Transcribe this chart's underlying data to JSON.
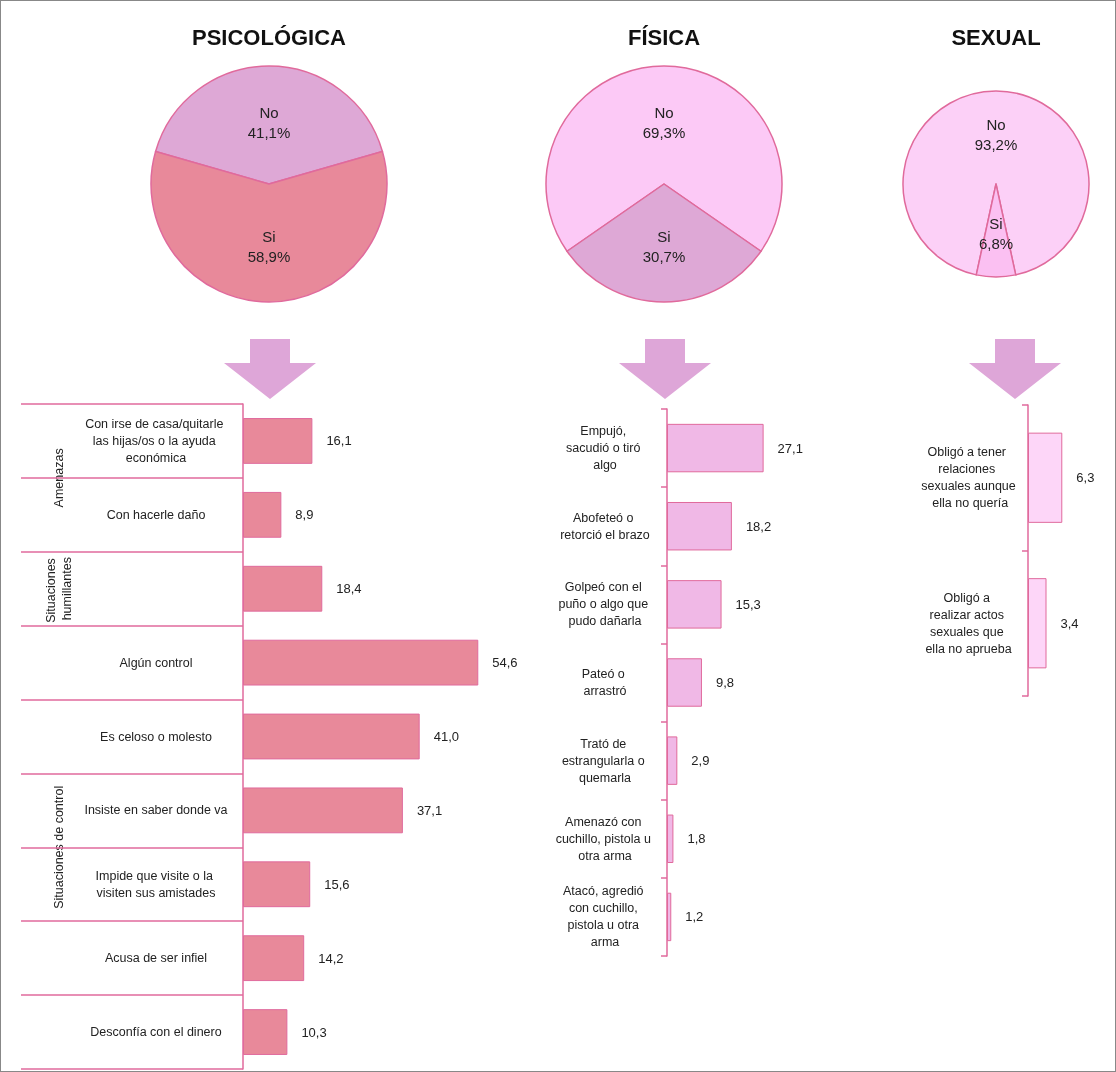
{
  "chart_data": [
    {
      "type": "pie",
      "title": "PSICOLÓGICA",
      "categories": [
        "No",
        "Si"
      ],
      "values": [
        41.1,
        58.9
      ],
      "colors": [
        "#dea8d6",
        "#e8899a"
      ],
      "value_labels": [
        "41,1%",
        "58,9%"
      ]
    },
    {
      "type": "pie",
      "title": "FÍSICA",
      "categories": [
        "No",
        "Si"
      ],
      "values": [
        69.3,
        30.7
      ],
      "colors": [
        "#fcc9f6",
        "#dea8d6"
      ],
      "value_labels": [
        "69,3%",
        "30,7%"
      ]
    },
    {
      "type": "pie",
      "title": "SEXUAL",
      "categories": [
        "No",
        "Si"
      ],
      "values": [
        93.2,
        6.8
      ],
      "colors": [
        "#fcd0f7",
        "#fbc0f2"
      ],
      "value_labels": [
        "93,2%",
        "6,8%"
      ]
    },
    {
      "type": "bar",
      "orientation": "horizontal",
      "categories": [
        "Con irse de casa/quitarle las hijas/os o la ayuda económica",
        "Con hacerle daño",
        null,
        "Algún control",
        "Es celoso o molesto",
        "Insiste en saber donde va",
        "Impide que visite o la visiten sus amistades",
        "Acusa de ser infiel",
        "Desconfía con el dinero"
      ],
      "values": [
        16.1,
        8.9,
        18.4,
        54.6,
        41.0,
        37.1,
        15.6,
        14.2,
        10.3
      ],
      "color": "#e8899a",
      "value_labels": [
        "16,1",
        "8,9",
        "18,4",
        "54,6",
        "41,0",
        "37,1",
        "15,6",
        "14,2",
        "10,3"
      ],
      "tick_labels": "y",
      "annotations": [
        "Amenazas",
        "Situaciones humillantes",
        "Situaciones de control"
      ]
    },
    {
      "type": "bar",
      "orientation": "horizontal",
      "categories": [
        "Empujó, sacudió o tiró algo",
        "Abofeteó o retorció el brazo",
        "Golpeó con el puño o algo que pudo dañarla",
        "Pateó o arrastró",
        "Trató de estrangularla o quemarla",
        "Amenazó con cuchillo, pistola u otra arma",
        "Atacó, agredió con cuchillo, pistola u otra arma"
      ],
      "values": [
        27.1,
        18.2,
        15.3,
        9.8,
        2.9,
        1.8,
        1.2
      ],
      "color": "#f0b8e6",
      "value_labels": [
        "27,1",
        "18,2",
        "15,3",
        "9,8",
        "2,9",
        "1,8",
        "1,2"
      ],
      "tick_labels": "y"
    },
    {
      "type": "bar",
      "orientation": "horizontal",
      "categories": [
        "Obligó a tener relaciones sexuales aunque ella no quería",
        "Obligó a realizar actos sexuales que ella no aprueba"
      ],
      "values": [
        6.3,
        3.4
      ],
      "color": "#fdd6f8",
      "value_labels": [
        "6,3",
        "3,4"
      ],
      "tick_labels": "y"
    }
  ]
}
